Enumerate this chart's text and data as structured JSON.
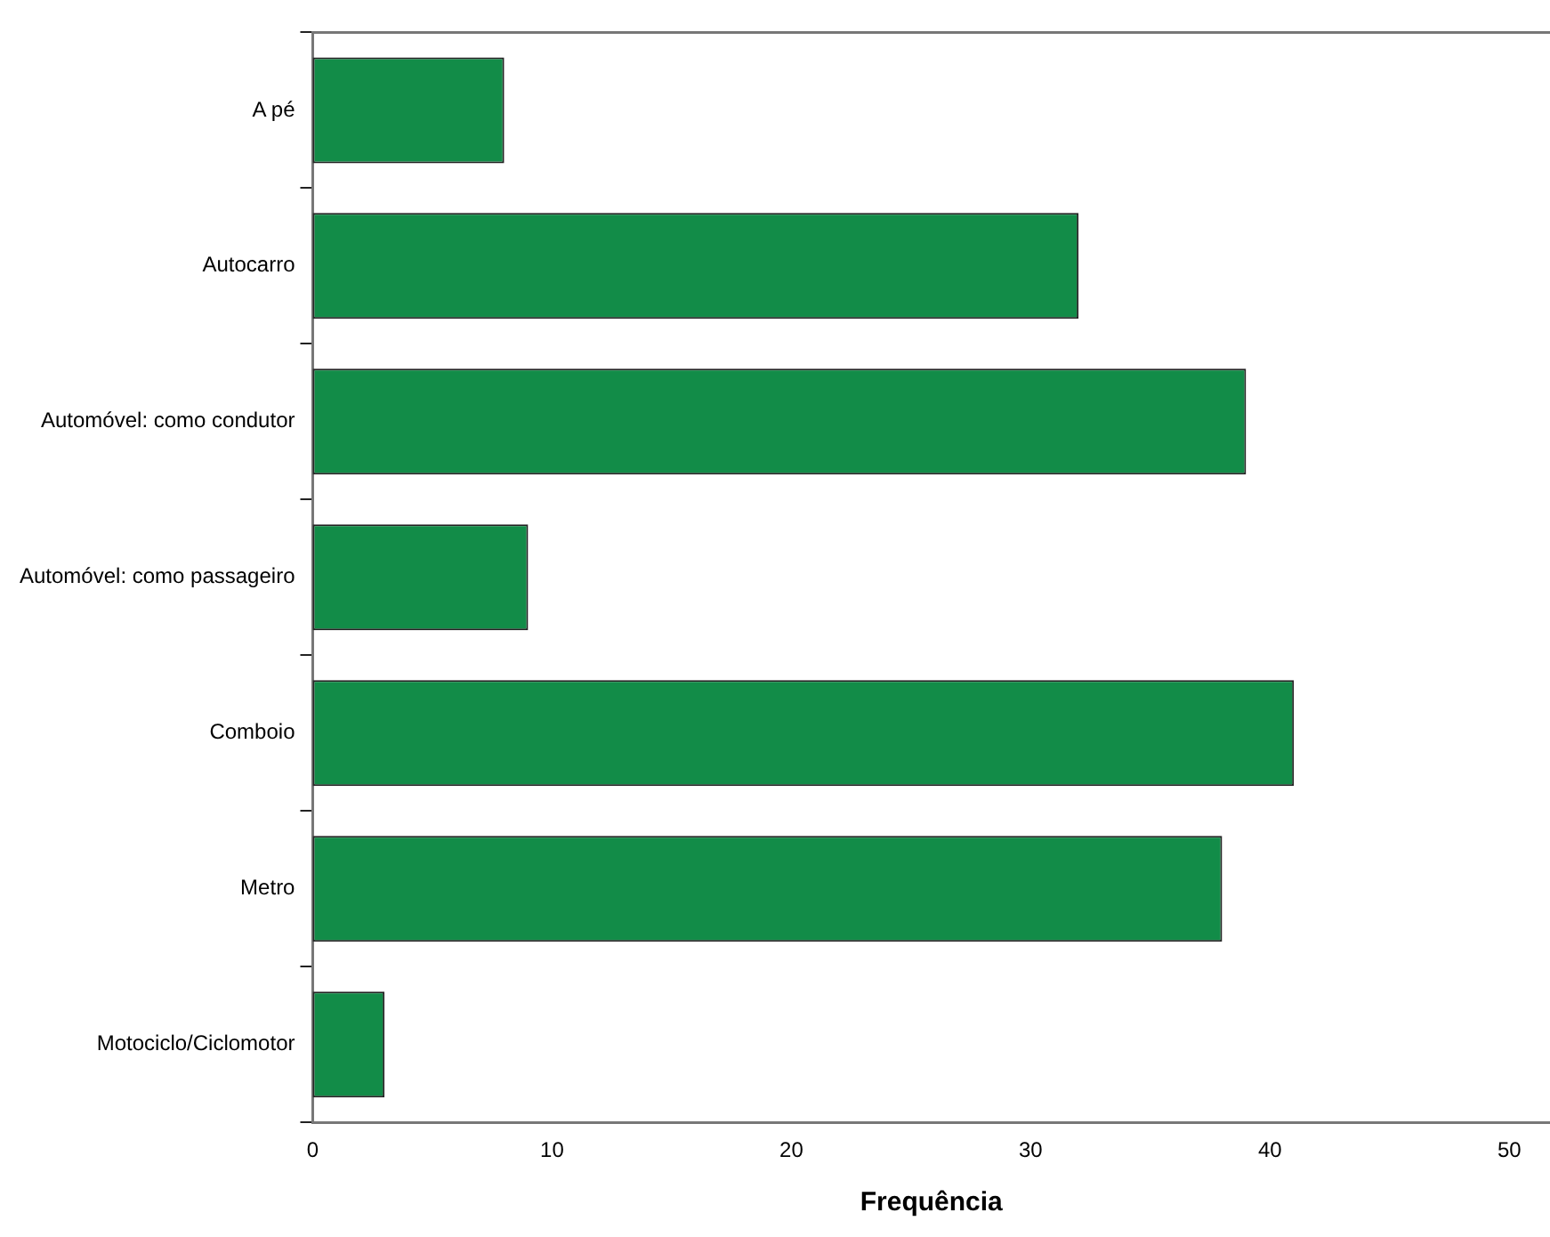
{
  "chart_data": {
    "type": "bar",
    "orientation": "horizontal",
    "xlabel": "Frequência",
    "categories": [
      "A pé",
      "Autocarro",
      "Automóvel: como condutor",
      "Automóvel: como passageiro",
      "Comboio",
      "Metro",
      "Motociclo/Ciclomotor"
    ],
    "values": [
      8,
      32,
      39,
      9,
      41,
      38,
      3
    ],
    "color": "#128c48",
    "xlim": [
      0,
      51.7
    ],
    "xticks": [
      0,
      10,
      20,
      30,
      40,
      50
    ],
    "grid": false,
    "legend": false
  }
}
